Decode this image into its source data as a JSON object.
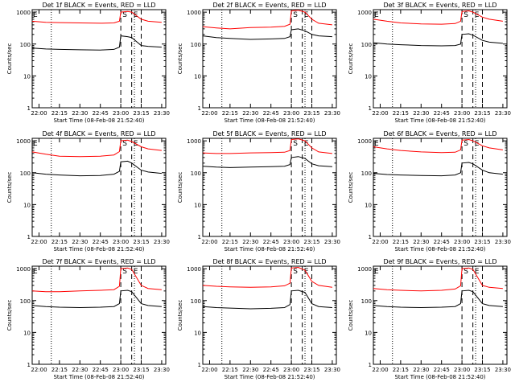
{
  "chart_data": [
    {
      "type": "line",
      "title": "Det 1f BLACK = Events, RED = LLD",
      "xlabel": "Start Time (08-Feb-08 21:52:40)",
      "ylabel": "Counts/sec",
      "xlim": [
        "21:55",
        "23:33"
      ],
      "ylim": [
        1,
        1200
      ],
      "yscale": "log",
      "x_ticks": [
        "22:00",
        "22:15",
        "22:30",
        "22:45",
        "23:00",
        "23:15",
        "23:30"
      ],
      "y_ticks": [
        "1",
        "10",
        "100",
        "1000"
      ],
      "markers": [
        {
          "label": "E",
          "x": "21:55"
        },
        {
          "label": "S",
          "x": "23:00"
        },
        {
          "label": "E",
          "x": "23:08"
        }
      ],
      "dashed_lines": [
        "23:00",
        "23:08",
        "23:15"
      ],
      "dotted_lines": [
        "22:09",
        "23:10"
      ],
      "series": [
        {
          "color": "#ff0000",
          "x": [
            "21:55",
            "22:05",
            "22:15",
            "22:30",
            "22:45",
            "22:55",
            "22:59",
            "23:00",
            "23:05",
            "23:08",
            "23:15",
            "23:20",
            "23:30"
          ],
          "values": [
            520,
            480,
            470,
            460,
            450,
            460,
            520,
            1000,
            1050,
            1000,
            600,
            520,
            480
          ]
        },
        {
          "color": "#000000",
          "x": [
            "21:55",
            "22:05",
            "22:15",
            "22:30",
            "22:45",
            "22:55",
            "22:59",
            "23:00",
            "23:05",
            "23:08",
            "23:15",
            "23:20",
            "23:30"
          ],
          "values": [
            75,
            70,
            68,
            66,
            65,
            68,
            80,
            180,
            170,
            160,
            90,
            85,
            80
          ]
        }
      ]
    },
    {
      "type": "line",
      "title": "Det 2f BLACK = Events, RED = LLD",
      "xlabel": "Start Time (08-Feb-08 21:52:40)",
      "ylabel": "Counts/sec",
      "xlim": [
        "21:55",
        "23:33"
      ],
      "ylim": [
        1,
        1200
      ],
      "yscale": "log",
      "x_ticks": [
        "22:00",
        "22:15",
        "22:30",
        "22:45",
        "23:00",
        "23:15",
        "23:30"
      ],
      "y_ticks": [
        "1",
        "10",
        "100",
        "1000"
      ],
      "markers": [
        {
          "label": "S",
          "x": "23:00"
        },
        {
          "label": "E",
          "x": "23:08"
        }
      ],
      "dashed_lines": [
        "23:00",
        "23:08",
        "23:15"
      ],
      "dotted_lines": [
        "22:09",
        "23:10"
      ],
      "series": [
        {
          "color": "#ff0000",
          "x": [
            "21:55",
            "22:05",
            "22:15",
            "22:30",
            "22:45",
            "22:55",
            "22:59",
            "23:00",
            "23:05",
            "23:10",
            "23:15",
            "23:20",
            "23:30"
          ],
          "values": [
            350,
            320,
            300,
            330,
            340,
            360,
            420,
            1100,
            1150,
            1000,
            600,
            450,
            400
          ]
        },
        {
          "color": "#000000",
          "x": [
            "21:55",
            "22:05",
            "22:15",
            "22:30",
            "22:45",
            "22:55",
            "22:59",
            "23:00",
            "23:05",
            "23:10",
            "23:15",
            "23:20",
            "23:30"
          ],
          "values": [
            180,
            160,
            150,
            140,
            145,
            150,
            170,
            280,
            300,
            260,
            200,
            180,
            170
          ]
        }
      ]
    },
    {
      "type": "line",
      "title": "Det 3f BLACK = Events, RED = LLD",
      "xlabel": "Start Time (08-Feb-08 21:52:40)",
      "ylabel": "Counts/sec",
      "xlim": [
        "21:55",
        "23:33"
      ],
      "ylim": [
        1,
        1200
      ],
      "yscale": "log",
      "x_ticks": [
        "22:00",
        "22:15",
        "22:30",
        "22:45",
        "23:00",
        "23:15",
        "23:30"
      ],
      "y_ticks": [
        "1",
        "10",
        "100",
        "1000"
      ],
      "markers": [
        {
          "label": "E",
          "x": "21:55"
        },
        {
          "label": "S",
          "x": "23:00"
        },
        {
          "label": "E",
          "x": "23:08"
        }
      ],
      "dashed_lines": [
        "23:00",
        "23:08",
        "23:15"
      ],
      "dotted_lines": [
        "22:09",
        "23:10"
      ],
      "series": [
        {
          "color": "#ff0000",
          "x": [
            "21:55",
            "22:05",
            "22:15",
            "22:30",
            "22:45",
            "22:55",
            "22:59",
            "23:00",
            "23:05",
            "23:08",
            "23:15",
            "23:20",
            "23:30"
          ],
          "values": [
            600,
            520,
            460,
            430,
            420,
            440,
            520,
            1050,
            1100,
            1000,
            700,
            600,
            520
          ]
        },
        {
          "color": "#000000",
          "x": [
            "21:55",
            "22:05",
            "22:15",
            "22:30",
            "22:45",
            "22:55",
            "22:59",
            "23:00",
            "23:05",
            "23:08",
            "23:15",
            "23:20",
            "23:30"
          ],
          "values": [
            110,
            100,
            95,
            90,
            88,
            90,
            100,
            200,
            210,
            190,
            130,
            115,
            105
          ]
        }
      ]
    },
    {
      "type": "line",
      "title": "Det 4f BLACK = Events, RED = LLD",
      "xlabel": "Start Time (08-Feb-08 21:52:40)",
      "ylabel": "Counts/sec",
      "xlim": [
        "21:55",
        "23:33"
      ],
      "ylim": [
        1,
        1200
      ],
      "yscale": "log",
      "x_ticks": [
        "22:00",
        "22:15",
        "22:30",
        "22:45",
        "23:00",
        "23:15",
        "23:30"
      ],
      "y_ticks": [
        "1",
        "10",
        "100",
        "1000"
      ],
      "markers": [
        {
          "label": "E",
          "x": "21:55"
        },
        {
          "label": "S",
          "x": "23:00"
        },
        {
          "label": "E",
          "x": "23:08"
        }
      ],
      "dashed_lines": [
        "23:00",
        "23:08",
        "23:15"
      ],
      "dotted_lines": [
        "22:09",
        "23:10"
      ],
      "series": [
        {
          "color": "#ff0000",
          "x": [
            "21:55",
            "22:05",
            "22:15",
            "22:30",
            "22:45",
            "22:55",
            "22:59",
            "23:00",
            "23:05",
            "23:08",
            "23:15",
            "23:20",
            "23:30"
          ],
          "values": [
            450,
            380,
            330,
            320,
            330,
            360,
            460,
            1000,
            1050,
            950,
            650,
            560,
            500
          ]
        },
        {
          "color": "#000000",
          "x": [
            "21:55",
            "22:05",
            "22:15",
            "22:30",
            "22:45",
            "22:55",
            "22:59",
            "23:00",
            "23:05",
            "23:08",
            "23:15",
            "23:20",
            "23:30"
          ],
          "values": [
            100,
            90,
            85,
            80,
            82,
            90,
            110,
            220,
            230,
            200,
            120,
            105,
            95
          ]
        }
      ]
    },
    {
      "type": "line",
      "title": "Det 5f BLACK = Events, RED = LLD",
      "xlabel": "Start Time (08-Feb-08 21:52:40)",
      "ylabel": "Counts/sec",
      "xlim": [
        "21:55",
        "23:33"
      ],
      "ylim": [
        1,
        1200
      ],
      "yscale": "log",
      "x_ticks": [
        "22:00",
        "22:15",
        "22:30",
        "22:45",
        "23:00",
        "23:15",
        "23:30"
      ],
      "y_ticks": [
        "1",
        "10",
        "100",
        "1000"
      ],
      "markers": [
        {
          "label": "S",
          "x": "23:00"
        },
        {
          "label": "E",
          "x": "23:08"
        }
      ],
      "dashed_lines": [
        "23:00",
        "23:08",
        "23:15"
      ],
      "dotted_lines": [
        "22:09",
        "23:10"
      ],
      "series": [
        {
          "color": "#ff0000",
          "x": [
            "21:55",
            "22:05",
            "22:15",
            "22:30",
            "22:45",
            "22:55",
            "22:59",
            "23:00",
            "23:05",
            "23:10",
            "23:15",
            "23:20",
            "23:30"
          ],
          "values": [
            420,
            400,
            400,
            420,
            430,
            440,
            500,
            1100,
            1150,
            1000,
            600,
            450,
            400
          ]
        },
        {
          "color": "#000000",
          "x": [
            "21:55",
            "22:05",
            "22:15",
            "22:30",
            "22:45",
            "22:55",
            "22:59",
            "23:00",
            "23:05",
            "23:10",
            "23:15",
            "23:20",
            "23:30"
          ],
          "values": [
            160,
            150,
            145,
            150,
            155,
            160,
            180,
            300,
            320,
            280,
            190,
            165,
            155
          ]
        }
      ]
    },
    {
      "type": "line",
      "title": "Det 6f BLACK = Events, RED = LLD",
      "xlabel": "Start Time (08-Feb-08 21:52:40)",
      "ylabel": "Counts/sec",
      "xlim": [
        "21:55",
        "23:33"
      ],
      "ylim": [
        1,
        1200
      ],
      "yscale": "log",
      "x_ticks": [
        "22:00",
        "22:15",
        "22:30",
        "22:45",
        "23:00",
        "23:15",
        "23:30"
      ],
      "y_ticks": [
        "1",
        "10",
        "100",
        "1000"
      ],
      "markers": [
        {
          "label": "E",
          "x": "21:55"
        },
        {
          "label": "S",
          "x": "23:00"
        },
        {
          "label": "E",
          "x": "23:08"
        }
      ],
      "dashed_lines": [
        "23:00",
        "23:08",
        "23:15"
      ],
      "dotted_lines": [
        "22:09",
        "23:10"
      ],
      "series": [
        {
          "color": "#ff0000",
          "x": [
            "21:55",
            "22:05",
            "22:15",
            "22:30",
            "22:45",
            "22:55",
            "22:59",
            "23:00",
            "23:05",
            "23:08",
            "23:15",
            "23:20",
            "23:30"
          ],
          "values": [
            650,
            560,
            500,
            450,
            430,
            440,
            520,
            1050,
            1100,
            1000,
            700,
            600,
            520
          ]
        },
        {
          "color": "#000000",
          "x": [
            "21:55",
            "22:05",
            "22:15",
            "22:30",
            "22:45",
            "22:55",
            "22:59",
            "23:00",
            "23:05",
            "23:08",
            "23:15",
            "23:20",
            "23:30"
          ],
          "values": [
            95,
            88,
            85,
            82,
            80,
            85,
            100,
            200,
            210,
            190,
            120,
            100,
            90
          ]
        }
      ]
    },
    {
      "type": "line",
      "title": "Det 7f BLACK = Events, RED = LLD",
      "xlabel": "Start Time (08-Feb-08 21:52:40)",
      "ylabel": "Counts/sec",
      "xlim": [
        "21:55",
        "23:33"
      ],
      "ylim": [
        1,
        1200
      ],
      "yscale": "log",
      "x_ticks": [
        "22:00",
        "22:15",
        "22:30",
        "22:45",
        "23:00",
        "23:15",
        "23:30"
      ],
      "y_ticks": [
        "1",
        "10",
        "100",
        "1000"
      ],
      "markers": [
        {
          "label": "E",
          "x": "21:55"
        },
        {
          "label": "S",
          "x": "23:00"
        },
        {
          "label": "E",
          "x": "23:08"
        }
      ],
      "dashed_lines": [
        "23:00",
        "23:08",
        "23:15"
      ],
      "dotted_lines": [
        "22:09",
        "23:10"
      ],
      "series": [
        {
          "color": "#ff0000",
          "x": [
            "21:55",
            "22:05",
            "22:15",
            "22:30",
            "22:45",
            "22:55",
            "22:59",
            "23:00",
            "23:05",
            "23:08",
            "23:15",
            "23:20",
            "23:30"
          ],
          "values": [
            200,
            190,
            190,
            200,
            210,
            220,
            280,
            1000,
            1050,
            950,
            300,
            240,
            220
          ]
        },
        {
          "color": "#000000",
          "x": [
            "21:55",
            "22:05",
            "22:15",
            "22:30",
            "22:45",
            "22:55",
            "22:59",
            "23:00",
            "23:05",
            "23:08",
            "23:15",
            "23:20",
            "23:30"
          ],
          "values": [
            70,
            65,
            62,
            60,
            62,
            65,
            80,
            200,
            210,
            190,
            80,
            70,
            65
          ]
        }
      ]
    },
    {
      "type": "line",
      "title": "Det 8f BLACK = Events, RED = LLD",
      "xlabel": "Start Time (08-Feb-08 21:52:40)",
      "ylabel": "Counts/sec",
      "xlim": [
        "21:55",
        "23:33"
      ],
      "ylim": [
        1,
        1200
      ],
      "yscale": "log",
      "x_ticks": [
        "22:00",
        "22:15",
        "22:30",
        "22:45",
        "23:00",
        "23:15",
        "23:30"
      ],
      "y_ticks": [
        "1",
        "10",
        "100",
        "1000"
      ],
      "markers": [
        {
          "label": "S",
          "x": "23:00"
        },
        {
          "label": "E",
          "x": "23:08"
        }
      ],
      "dashed_lines": [
        "23:00",
        "23:08",
        "23:15"
      ],
      "dotted_lines": [
        "22:09",
        "23:10"
      ],
      "series": [
        {
          "color": "#ff0000",
          "x": [
            "21:55",
            "22:05",
            "22:15",
            "22:30",
            "22:45",
            "22:55",
            "22:59",
            "23:00",
            "23:05",
            "23:10",
            "23:15",
            "23:20",
            "23:30"
          ],
          "values": [
            300,
            280,
            270,
            260,
            270,
            290,
            350,
            1050,
            1100,
            900,
            400,
            300,
            260
          ]
        },
        {
          "color": "#000000",
          "x": [
            "21:55",
            "22:05",
            "22:15",
            "22:30",
            "22:45",
            "22:55",
            "22:59",
            "23:00",
            "23:05",
            "23:10",
            "23:15",
            "23:20",
            "23:30"
          ],
          "values": [
            65,
            60,
            58,
            55,
            57,
            60,
            75,
            200,
            210,
            180,
            80,
            65,
            60
          ]
        }
      ]
    },
    {
      "type": "line",
      "title": "Det 9f BLACK = Events, RED = LLD",
      "xlabel": "Start Time (08-Feb-08 21:52:40)",
      "ylabel": "Counts/sec",
      "xlim": [
        "21:55",
        "23:33"
      ],
      "ylim": [
        1,
        1200
      ],
      "yscale": "log",
      "x_ticks": [
        "22:00",
        "22:15",
        "22:30",
        "22:45",
        "23:00",
        "23:15",
        "23:30"
      ],
      "y_ticks": [
        "1",
        "10",
        "100",
        "1000"
      ],
      "markers": [
        {
          "label": "E",
          "x": "21:55"
        },
        {
          "label": "S",
          "x": "23:00"
        },
        {
          "label": "E",
          "x": "23:08"
        }
      ],
      "dashed_lines": [
        "23:00",
        "23:08",
        "23:15"
      ],
      "dotted_lines": [
        "22:09",
        "23:10"
      ],
      "series": [
        {
          "color": "#ff0000",
          "x": [
            "21:55",
            "22:05",
            "22:15",
            "22:30",
            "22:45",
            "22:55",
            "22:59",
            "23:00",
            "23:05",
            "23:08",
            "23:15",
            "23:20",
            "23:30"
          ],
          "values": [
            240,
            220,
            210,
            200,
            210,
            230,
            290,
            1000,
            1050,
            950,
            300,
            260,
            240
          ]
        },
        {
          "color": "#000000",
          "x": [
            "21:55",
            "22:05",
            "22:15",
            "22:30",
            "22:45",
            "22:55",
            "22:59",
            "23:00",
            "23:05",
            "23:08",
            "23:15",
            "23:20",
            "23:30"
          ],
          "values": [
            70,
            65,
            62,
            60,
            62,
            65,
            80,
            200,
            210,
            190,
            80,
            70,
            65
          ]
        }
      ]
    }
  ]
}
